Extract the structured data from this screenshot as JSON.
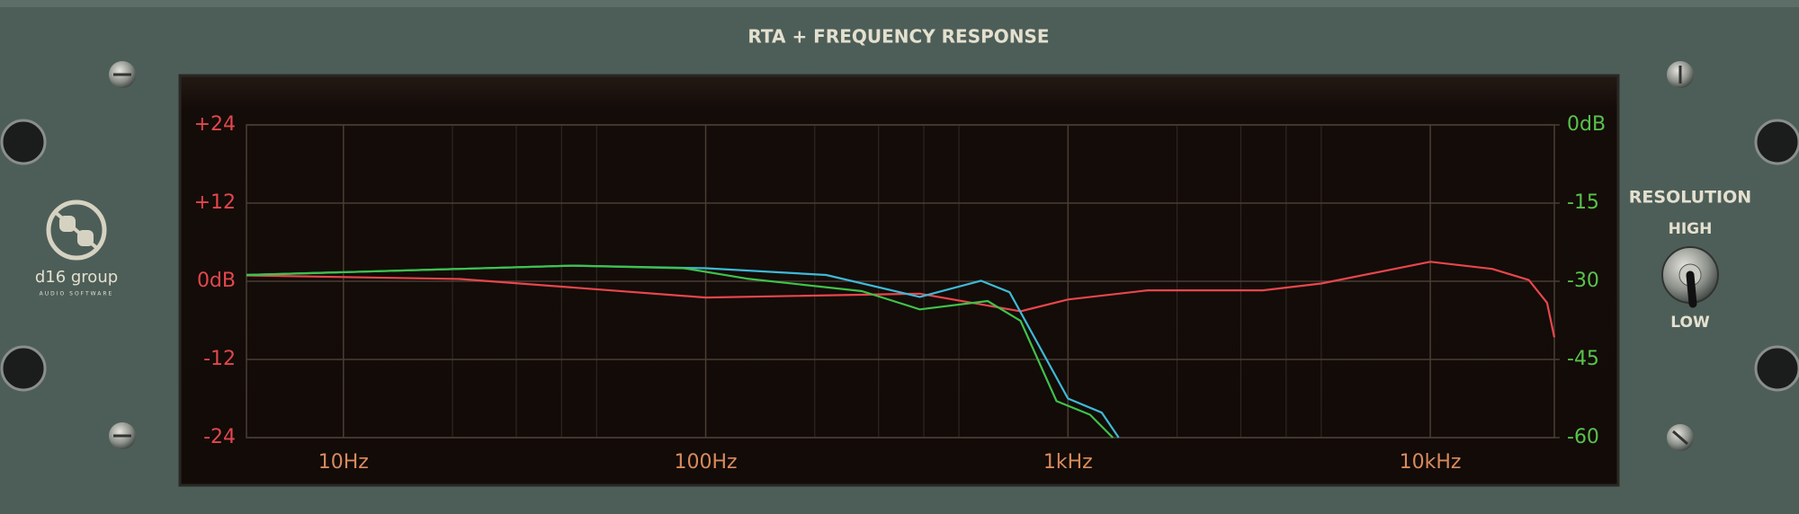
{
  "panel": {
    "title": "RTA + FREQUENCY RESPONSE",
    "brand": "d16 group",
    "brand_sub": "AUDIO SOFTWARE",
    "resolution": {
      "label": "RESOLUTION",
      "high": "HIGH",
      "low": "LOW"
    }
  },
  "chart_data": {
    "type": "line",
    "xscale": "log",
    "xlim": [
      5.4,
      22000
    ],
    "xticks": [
      {
        "value": 10,
        "label": "10Hz"
      },
      {
        "value": 100,
        "label": "100Hz"
      },
      {
        "value": 1000,
        "label": "1kHz"
      },
      {
        "value": 10000,
        "label": "10kHz"
      }
    ],
    "x_minor_ticks": [
      20,
      30,
      40,
      50,
      200,
      300,
      400,
      500,
      2000,
      3000,
      4000,
      5000
    ],
    "ylim": [
      -24,
      24
    ],
    "yticks": [
      {
        "value": -24,
        "label": "-24"
      },
      {
        "value": -12,
        "label": "-12"
      },
      {
        "value": 0,
        "label": "0dB"
      },
      {
        "value": 12,
        "label": "+12"
      },
      {
        "value": 24,
        "label": "+24"
      }
    ],
    "y2lim": [
      -60,
      0
    ],
    "y2ticks": [
      -60,
      -45,
      -30,
      -15,
      {
        "value": 0,
        "label": "0dB"
      }
    ],
    "grid": true,
    "series": [
      {
        "color": "#e8464c",
        "axis": "y",
        "x": [
          5.4,
          21,
          100,
          390,
          740,
          1000,
          1660,
          3450,
          5000,
          10000,
          14800,
          18700,
          21000,
          22000
        ],
        "values": [
          0.9,
          0.35,
          -2.5,
          -1.9,
          -4.6,
          -2.8,
          -1.4,
          -1.4,
          -0.35,
          3.0,
          1.9,
          0.2,
          -3.3,
          -8.6
        ]
      },
      {
        "color": "#3fb9d6",
        "axis": "y2",
        "x": [
          5.4,
          43,
          100,
          215,
          390,
          575,
          690,
          1000,
          1240,
          1380
        ],
        "values": [
          -28.8,
          -27.0,
          -27.5,
          -28.8,
          -33.0,
          -29.9,
          -32.1,
          -52.5,
          -55.2,
          -60
        ]
      },
      {
        "color": "#3fc24a",
        "axis": "y2",
        "x": [
          5.4,
          43,
          87,
          130,
          270,
          390,
          600,
          740,
          930,
          1150,
          1330
        ],
        "values": [
          -28.8,
          -27.0,
          -27.5,
          -29.5,
          -31.9,
          -35.4,
          -33.8,
          -37.6,
          -53.0,
          -55.6,
          -60
        ]
      }
    ]
  }
}
